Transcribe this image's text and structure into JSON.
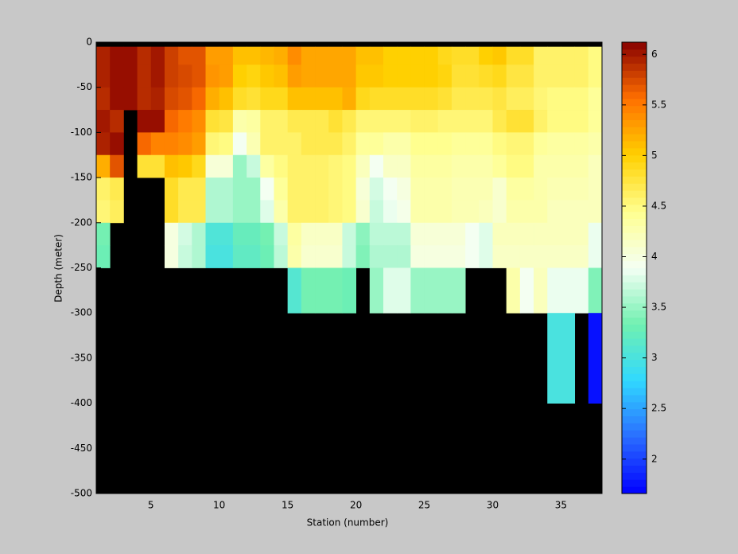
{
  "chart_data": {
    "type": "heatmap",
    "xlabel": "Station (number)",
    "ylabel": "Depth (meter)",
    "x": [
      1,
      2,
      3,
      4,
      5,
      6,
      7,
      8,
      9,
      10,
      11,
      12,
      13,
      14,
      15,
      16,
      17,
      18,
      19,
      20,
      21,
      22,
      23,
      24,
      25,
      26,
      27,
      28,
      29,
      30,
      31,
      32,
      33,
      34,
      35,
      36,
      37,
      38
    ],
    "y": [
      0,
      -5,
      -25,
      -50,
      -75,
      -100,
      -125,
      -150,
      -175,
      -200,
      -225,
      -250,
      -300,
      -400,
      -500
    ],
    "values": [
      [
        null,
        null,
        null,
        null,
        null,
        null,
        null,
        null,
        null,
        null,
        null,
        null,
        null,
        null,
        null,
        null,
        null,
        null,
        null,
        null,
        null,
        null,
        null,
        null,
        null,
        null,
        null,
        null,
        null,
        null,
        null,
        null,
        null,
        null,
        null,
        null,
        null
      ],
      [
        5.95,
        6.05,
        6.05,
        5.9,
        6.0,
        5.8,
        5.7,
        5.7,
        5.3,
        5.3,
        5.1,
        5.1,
        5.15,
        5.2,
        5.4,
        5.25,
        5.25,
        5.25,
        5.25,
        5.1,
        5.1,
        5.0,
        5.0,
        5.0,
        5.0,
        4.9,
        4.85,
        4.85,
        5.0,
        5.05,
        4.85,
        4.85,
        4.6,
        4.6,
        4.6,
        4.6,
        4.5
      ],
      [
        5.95,
        6.05,
        6.05,
        5.9,
        6.0,
        5.8,
        5.75,
        5.7,
        5.35,
        5.3,
        5.0,
        4.95,
        5.05,
        5.1,
        5.3,
        5.25,
        5.25,
        5.25,
        5.25,
        5.05,
        5.05,
        5.0,
        5.0,
        5.0,
        5.0,
        4.95,
        4.8,
        4.8,
        4.85,
        4.9,
        4.75,
        4.75,
        4.6,
        4.6,
        4.6,
        4.6,
        4.5
      ],
      [
        5.9,
        6.05,
        6.05,
        5.9,
        5.95,
        5.75,
        5.7,
        5.6,
        5.2,
        5.1,
        4.85,
        4.8,
        4.9,
        4.9,
        5.1,
        5.1,
        5.1,
        5.1,
        5.2,
        4.9,
        4.85,
        4.85,
        4.85,
        4.85,
        4.85,
        4.8,
        4.7,
        4.7,
        4.7,
        4.75,
        4.65,
        4.65,
        4.55,
        4.5,
        4.5,
        4.5,
        4.4
      ],
      [
        6.0,
        5.9,
        null,
        6.05,
        6.05,
        5.6,
        5.5,
        5.4,
        4.8,
        4.75,
        4.3,
        4.35,
        4.6,
        4.6,
        4.7,
        4.7,
        4.7,
        4.8,
        4.7,
        4.55,
        4.55,
        4.55,
        4.55,
        4.6,
        4.6,
        4.55,
        4.55,
        4.55,
        4.55,
        4.7,
        4.8,
        4.8,
        4.6,
        4.5,
        4.5,
        4.5,
        4.4
      ],
      [
        5.95,
        6.05,
        null,
        5.6,
        5.45,
        5.45,
        5.4,
        5.3,
        4.55,
        4.5,
        3.9,
        4.25,
        4.6,
        4.6,
        4.6,
        4.7,
        4.7,
        4.7,
        4.6,
        4.4,
        4.4,
        4.3,
        4.3,
        4.45,
        4.45,
        4.45,
        4.4,
        4.4,
        4.4,
        4.5,
        4.55,
        4.55,
        4.4,
        4.35,
        4.35,
        4.35,
        4.3
      ],
      [
        5.2,
        5.7,
        null,
        4.8,
        4.8,
        5.1,
        5.05,
        4.9,
        4.05,
        4.05,
        3.5,
        3.7,
        4.35,
        4.5,
        4.6,
        4.6,
        4.6,
        4.55,
        4.5,
        4.2,
        3.9,
        4.15,
        4.15,
        4.35,
        4.35,
        4.35,
        4.3,
        4.3,
        4.3,
        4.4,
        4.5,
        4.5,
        4.3,
        4.3,
        4.3,
        4.3,
        4.2
      ],
      [
        4.6,
        4.7,
        null,
        null,
        null,
        4.85,
        4.7,
        4.7,
        3.6,
        3.6,
        3.5,
        3.5,
        3.9,
        4.4,
        4.6,
        4.6,
        4.6,
        4.55,
        4.5,
        4.05,
        3.75,
        3.9,
        4.0,
        4.3,
        4.3,
        4.3,
        4.25,
        4.25,
        4.25,
        4.1,
        4.35,
        4.35,
        4.3,
        4.25,
        4.25,
        4.25,
        4.2
      ],
      [
        4.55,
        4.65,
        null,
        null,
        null,
        4.85,
        4.7,
        4.7,
        3.6,
        3.6,
        3.5,
        3.5,
        3.8,
        4.3,
        4.6,
        4.6,
        4.6,
        4.55,
        4.5,
        4.1,
        3.7,
        3.85,
        3.95,
        4.3,
        4.3,
        4.3,
        4.25,
        4.25,
        4.2,
        4.1,
        4.3,
        4.3,
        4.3,
        4.2,
        4.2,
        4.2,
        4.2
      ],
      [
        3.35,
        null,
        null,
        null,
        null,
        4.0,
        3.75,
        3.6,
        3.05,
        3.05,
        3.25,
        3.25,
        3.35,
        3.7,
        4.35,
        4.15,
        4.15,
        4.15,
        3.7,
        3.45,
        3.65,
        3.65,
        3.65,
        4.05,
        4.05,
        4.05,
        4.05,
        3.9,
        3.8,
        4.2,
        4.2,
        4.2,
        4.2,
        4.2,
        4.2,
        4.2,
        3.85
      ],
      [
        3.3,
        null,
        null,
        null,
        null,
        4.0,
        3.7,
        3.6,
        3.0,
        3.0,
        3.2,
        3.2,
        3.3,
        3.65,
        4.3,
        4.1,
        4.1,
        4.1,
        3.7,
        3.4,
        3.6,
        3.6,
        3.6,
        4.0,
        4.0,
        4.0,
        4.0,
        3.9,
        3.8,
        4.15,
        4.15,
        4.15,
        4.15,
        4.15,
        4.15,
        4.15,
        3.85
      ],
      [
        null,
        null,
        null,
        null,
        null,
        null,
        null,
        null,
        null,
        null,
        null,
        null,
        null,
        null,
        3.1,
        3.35,
        3.35,
        3.35,
        3.3,
        null,
        3.5,
        3.8,
        3.8,
        3.5,
        3.5,
        3.5,
        3.5,
        null,
        null,
        null,
        4.3,
        3.9,
        4.2,
        3.85,
        3.85,
        3.85,
        3.4
      ],
      [
        null,
        null,
        null,
        null,
        null,
        null,
        null,
        null,
        null,
        null,
        null,
        null,
        null,
        null,
        null,
        null,
        null,
        null,
        null,
        null,
        null,
        null,
        null,
        null,
        null,
        null,
        null,
        null,
        null,
        null,
        null,
        null,
        null,
        3.0,
        3.0,
        null,
        1.75
      ],
      [
        null,
        null,
        null,
        null,
        null,
        null,
        null,
        null,
        null,
        null,
        null,
        null,
        null,
        null,
        null,
        null,
        null,
        null,
        null,
        null,
        null,
        null,
        null,
        null,
        null,
        null,
        null,
        null,
        null,
        null,
        null,
        null,
        null,
        null,
        null,
        null,
        null
      ]
    ],
    "xlim": [
      1,
      38
    ],
    "ylim": [
      -500,
      0
    ],
    "xticks": [
      5,
      10,
      15,
      20,
      25,
      30,
      35
    ],
    "yticks": [
      0,
      -50,
      -100,
      -150,
      -200,
      -250,
      -300,
      -350,
      -400,
      -450,
      -500
    ],
    "clim": [
      1.66,
      6.12
    ],
    "cticks": [
      2,
      2.5,
      3,
      3.5,
      4,
      4.5,
      5,
      5.5,
      6
    ],
    "colormap": [
      "#0000ff",
      "#2a6cff",
      "#30d8ff",
      "#70f0b0",
      "#f4fff4",
      "#ffff90",
      "#ffd000",
      "#ff7000",
      "#880000"
    ],
    "missing_color": "#000000"
  }
}
